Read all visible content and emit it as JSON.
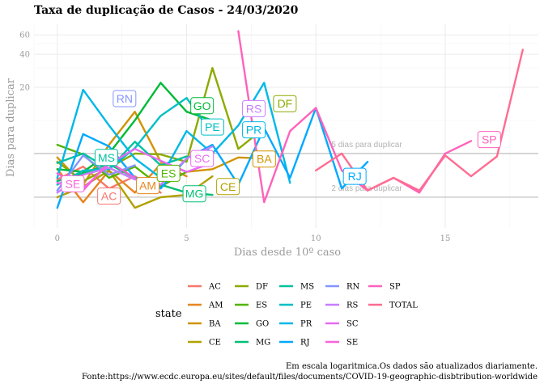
{
  "chart_data": {
    "type": "line",
    "title": "Taxa de duplicação de Casos -  24/03/2020",
    "xlabel": "Dias desde 10º caso",
    "ylabel": "Dias para duplicar",
    "xlim": [
      -0.9,
      18.6
    ],
    "ylim_log": [
      1.05,
      75
    ],
    "y_scale": "log",
    "x_ticks": [
      0,
      5,
      10,
      15
    ],
    "y_ticks": [
      20,
      40,
      60
    ],
    "grid": true,
    "reference_lines": [
      {
        "label": "5 dias para duplicar",
        "y": 5,
        "label_x": 10.6
      },
      {
        "label": "2 dias para duplicar",
        "y": 2,
        "label_x": 10.6
      }
    ],
    "legend_title": "state",
    "legend_columns": [
      [
        "AC",
        "AM",
        "BA",
        "CE"
      ],
      [
        "DF",
        "ES",
        "GO",
        "MG"
      ],
      [
        "MS",
        "PE",
        "PR",
        "RJ"
      ],
      [
        "RN",
        "RS",
        "SC",
        "SE"
      ],
      [
        "SP",
        "TOTAL"
      ]
    ],
    "series": [
      {
        "name": "AC",
        "color": "#F8766D",
        "x": [
          0,
          1,
          2,
          3,
          4
        ],
        "y": [
          2.9,
          3.8,
          2.4,
          3.1,
          2.2
        ],
        "label_at": [
          2,
          2.05
        ]
      },
      {
        "name": "AM",
        "color": "#E7851E",
        "x": [
          0,
          1,
          2,
          3,
          4,
          5
        ],
        "y": [
          3.6,
          1.8,
          3.5,
          2.2,
          4.0,
          3.1
        ],
        "label_at": [
          3.5,
          2.55
        ]
      },
      {
        "name": "BA",
        "color": "#D09400",
        "x": [
          0,
          1,
          2,
          3,
          4,
          5,
          6,
          7,
          8
        ],
        "y": [
          4.6,
          2.6,
          6.0,
          12.0,
          4.2,
          3.4,
          3.6,
          4.6,
          4.5
        ],
        "label_at": [
          8.0,
          4.45
        ]
      },
      {
        "name": "CE",
        "color": "#B2A100",
        "x": [
          0,
          1,
          2,
          3,
          4,
          5,
          6
        ],
        "y": [
          2.0,
          2.5,
          3.5,
          1.6,
          2.0,
          2.1,
          3.1
        ],
        "label_at": [
          6.6,
          2.5
        ]
      },
      {
        "name": "DF",
        "color": "#8BAB00",
        "x": [
          0,
          1,
          2,
          3,
          4,
          5,
          6,
          7,
          8
        ],
        "y": [
          4.2,
          2.8,
          3.7,
          5.0,
          4.9,
          4.2,
          30.0,
          5.5,
          8.5
        ],
        "label_at": [
          8.8,
          14.2
        ]
      },
      {
        "name": "ES",
        "color": "#53B400",
        "x": [
          0,
          1,
          2,
          3,
          4,
          5
        ],
        "y": [
          6.0,
          4.9,
          3.0,
          3.8,
          2.5,
          3.4
        ],
        "label_at": [
          4.3,
          3.3
        ]
      },
      {
        "name": "GO",
        "color": "#00BA38",
        "x": [
          0,
          1,
          2,
          3,
          4,
          5,
          6
        ],
        "y": [
          3.6,
          3.4,
          5.0,
          10.0,
          22.0,
          12.0,
          10.0
        ],
        "label_at": [
          5.6,
          13.6
        ]
      },
      {
        "name": "MG",
        "color": "#00BF74",
        "x": [
          0,
          1,
          2,
          3,
          4,
          5,
          6
        ],
        "y": [
          2.8,
          3.3,
          4.0,
          3.0,
          2.6,
          2.2,
          2.1
        ],
        "label_at": [
          5.3,
          2.15
        ]
      },
      {
        "name": "MS",
        "color": "#00C19F",
        "x": [
          0,
          1,
          2,
          3,
          4,
          5
        ],
        "y": [
          4.1,
          5.0,
          3.6,
          6.4,
          3.9,
          4.7
        ],
        "label_at": [
          1.9,
          4.6
        ]
      },
      {
        "name": "PE",
        "color": "#00BFC4",
        "x": [
          0,
          1,
          2,
          3,
          4,
          5,
          6
        ],
        "y": [
          2.6,
          3.5,
          3.6,
          5.6,
          11.0,
          16.0,
          7.5
        ],
        "label_at": [
          6.0,
          8.7
        ]
      },
      {
        "name": "PR",
        "color": "#00B8E7",
        "x": [
          0,
          1,
          2,
          3,
          4,
          5,
          6,
          7,
          8,
          9
        ],
        "y": [
          3.0,
          19.0,
          9.0,
          4.5,
          3.0,
          8.0,
          5.0,
          9.0,
          22.0,
          2.7
        ],
        "label_at": [
          7.6,
          8.2
        ]
      },
      {
        "name": "RJ",
        "color": "#00A9FF",
        "x": [
          0,
          1,
          2,
          3,
          4,
          5,
          6,
          7,
          8,
          9,
          10,
          11,
          12
        ],
        "y": [
          1.6,
          7.5,
          5.8,
          3.0,
          2.4,
          4.5,
          6.0,
          2.6,
          8.5,
          3.0,
          13.0,
          2.4,
          4.2
        ],
        "label_at": [
          11.5,
          3.1
        ]
      },
      {
        "name": "RN",
        "color": "#8494FF",
        "x": [
          0,
          1,
          2,
          3
        ],
        "y": [
          2.3,
          4.8,
          3.2,
          3.9
        ],
        "label_at": [
          2.6,
          15.8
        ]
      },
      {
        "name": "RS",
        "color": "#C77CFF",
        "x": [
          0,
          1,
          2,
          3,
          4,
          5,
          6
        ],
        "y": [
          2.2,
          3.2,
          3.7,
          2.9,
          2.6,
          4.5,
          5.8
        ],
        "label_at": [
          7.6,
          12.8
        ]
      },
      {
        "name": "SC",
        "color": "#E76BF3",
        "x": [
          0,
          1,
          2,
          3,
          4,
          5,
          6
        ],
        "y": [
          2.7,
          2.4,
          4.0,
          5.5,
          4.3,
          3.4,
          4.1
        ],
        "label_at": [
          5.6,
          4.5
        ]
      },
      {
        "name": "SE",
        "color": "#FA62DB",
        "x": [
          0,
          1,
          2,
          3
        ],
        "y": [
          3.3,
          2.3,
          4.2,
          3.0
        ],
        "label_at": [
          0.6,
          2.65
        ]
      },
      {
        "name": "SP",
        "color": "#FF62BC",
        "x": [
          7,
          8,
          9,
          10,
          11,
          12,
          13,
          14,
          15,
          16
        ],
        "y": [
          65.0,
          1.8,
          8.0,
          13.0,
          3.5,
          2.3,
          3.0,
          2.2,
          5.0,
          6.5
        ],
        "label_at": [
          16.7,
          6.7
        ]
      },
      {
        "name": "TOTAL",
        "color": "#FF6C91",
        "x": [
          10,
          11,
          12,
          13,
          14,
          15,
          16,
          17,
          18
        ],
        "y": [
          3.5,
          5.0,
          2.3,
          3.0,
          2.3,
          4.8,
          3.1,
          4.7,
          44.0
        ],
        "label_at": null
      }
    ]
  },
  "caption": {
    "line1": "Em escala logaritmica.Os dados são atualizados diariamente.",
    "line2": "Fonte:https://www.ecdc.europa.eu/sites/default/files/documents/COVID-19-geographic-disbtribution-worldwide"
  }
}
